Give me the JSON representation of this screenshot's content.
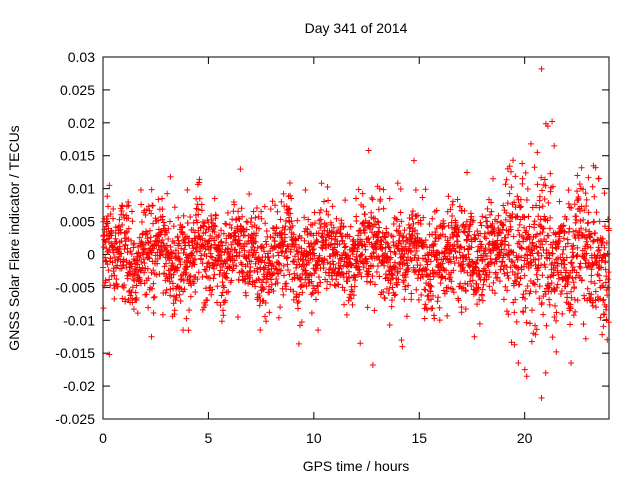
{
  "chart_data": {
    "type": "scatter",
    "title": "Day 341 of 2014",
    "xlabel": "GPS time / hours",
    "ylabel": "GNSS Solar Flare indicator / TECUs",
    "xlim": [
      0,
      24
    ],
    "ylim": [
      -0.025,
      0.03
    ],
    "x_ticks": [
      "0",
      "5",
      "10",
      "15",
      "20"
    ],
    "y_ticks": [
      "-0.025",
      "-0.02",
      "-0.015",
      "-0.01",
      "-0.005",
      "0",
      "0.005",
      "0.01",
      "0.015",
      "0.02",
      "0.025",
      "0.03"
    ],
    "marker": "+",
    "marker_color": "#ff0000",
    "grid": false,
    "legend": "none",
    "series": [
      {
        "points": [
          [
            0.3,
            -0.0152
          ],
          [
            0.3,
            0.0105
          ],
          [
            1.2,
            0.0055
          ],
          [
            1.8,
            0.0098
          ],
          [
            2.3,
            -0.0125
          ],
          [
            3.2,
            0.0118
          ],
          [
            3.8,
            -0.0115
          ],
          [
            4.0,
            0.0098
          ],
          [
            5.3,
            0.0085
          ],
          [
            6.4,
            -0.0095
          ],
          [
            7.5,
            0.0065
          ],
          [
            8.4,
            -0.008
          ],
          [
            9.6,
            0.0098
          ],
          [
            10.2,
            -0.0115
          ],
          [
            12.0,
            0.0085
          ],
          [
            12.2,
            -0.0135
          ],
          [
            12.6,
            0.0158
          ],
          [
            12.8,
            -0.0168
          ],
          [
            13.6,
            0.0085
          ],
          [
            14.2,
            -0.014
          ],
          [
            15.3,
            0.0099
          ],
          [
            17.0,
            -0.008
          ],
          [
            18.5,
            0.0115
          ],
          [
            19.2,
            0.013
          ],
          [
            19.7,
            -0.0165
          ],
          [
            19.9,
            0.0115
          ],
          [
            20.1,
            -0.0185
          ],
          [
            20.3,
            0.0168
          ],
          [
            20.6,
            0.0155
          ],
          [
            20.8,
            0.0282
          ],
          [
            20.8,
            -0.0218
          ],
          [
            21.0,
            -0.018
          ],
          [
            21.1,
            0.0195
          ],
          [
            21.3,
            0.0202
          ],
          [
            21.4,
            0.0165
          ],
          [
            21.5,
            -0.0148
          ],
          [
            22.2,
            -0.0165
          ],
          [
            22.5,
            0.012
          ],
          [
            22.9,
            -0.0128
          ],
          [
            23.5,
            0.0115
          ]
        ]
      }
    ]
  }
}
